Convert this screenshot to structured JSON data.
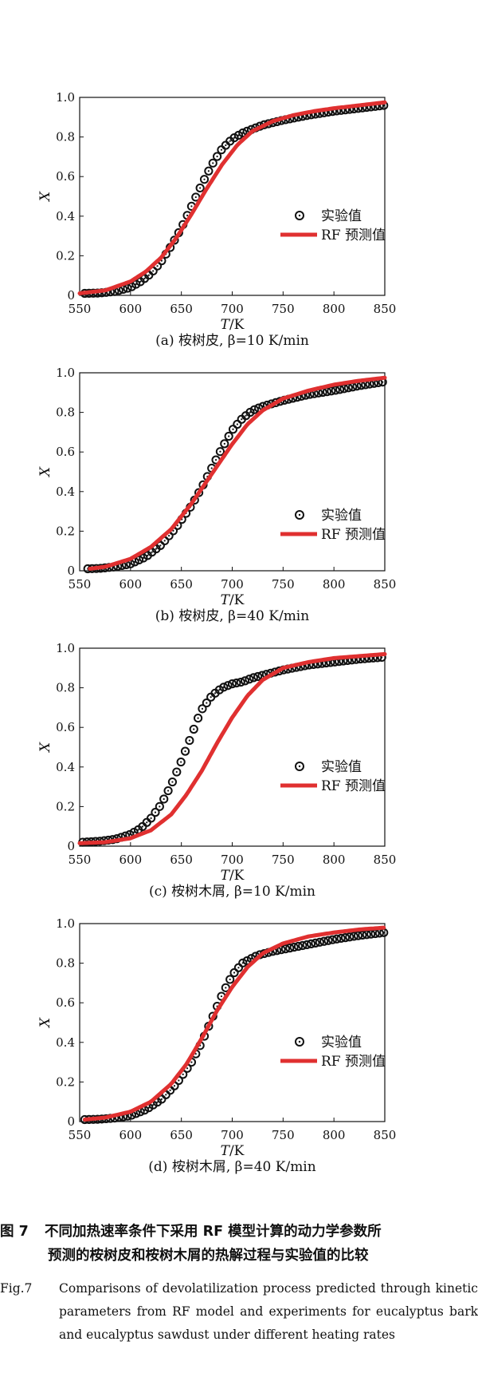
{
  "chart_data": [
    {
      "type": "line",
      "panel_caption": "(a) 桉树皮, β=10 K/min",
      "xlabel": "T/K",
      "ylabel": "X",
      "xlim": [
        550,
        850
      ],
      "ylim": [
        0,
        1.0
      ],
      "xticks": [
        "550",
        "600",
        "650",
        "700",
        "750",
        "800",
        "850"
      ],
      "yticks": [
        "0",
        "0.2",
        "0.4",
        "0.6",
        "0.8",
        "1.0"
      ],
      "legend_position": "right",
      "series": [
        {
          "name": "实验值",
          "marker": "circle-dot",
          "x": [
            555,
            570,
            585,
            600,
            610,
            620,
            630,
            640,
            650,
            660,
            670,
            680,
            690,
            700,
            710,
            720,
            730,
            750,
            775,
            800,
            825,
            850
          ],
          "y": [
            0.01,
            0.012,
            0.02,
            0.04,
            0.07,
            0.11,
            0.17,
            0.25,
            0.34,
            0.45,
            0.56,
            0.66,
            0.74,
            0.79,
            0.82,
            0.84,
            0.86,
            0.885,
            0.91,
            0.93,
            0.945,
            0.96
          ]
        },
        {
          "name": "RF 预测值",
          "color": "#e03030",
          "x": [
            550,
            575,
            600,
            615,
            630,
            645,
            660,
            675,
            690,
            705,
            720,
            740,
            760,
            780,
            800,
            825,
            850
          ],
          "y": [
            0.01,
            0.025,
            0.07,
            0.12,
            0.19,
            0.29,
            0.41,
            0.54,
            0.66,
            0.76,
            0.83,
            0.88,
            0.91,
            0.93,
            0.945,
            0.96,
            0.975
          ]
        }
      ]
    },
    {
      "type": "line",
      "panel_caption": "(b) 桉树皮, β=40 K/min",
      "xlabel": "T/K",
      "ylabel": "X",
      "xlim": [
        550,
        850
      ],
      "ylim": [
        0,
        1.0
      ],
      "xticks": [
        "550",
        "600",
        "650",
        "700",
        "750",
        "800",
        "850"
      ],
      "yticks": [
        "0",
        "0.2",
        "0.4",
        "0.6",
        "0.8",
        "1.0"
      ],
      "legend_position": "right",
      "series": [
        {
          "name": "实验值",
          "marker": "circle-dot",
          "x": [
            558,
            570,
            585,
            600,
            615,
            630,
            645,
            660,
            670,
            680,
            690,
            700,
            710,
            720,
            730,
            750,
            775,
            800,
            825,
            850
          ],
          "y": [
            0.01,
            0.012,
            0.02,
            0.035,
            0.07,
            0.13,
            0.22,
            0.33,
            0.42,
            0.52,
            0.62,
            0.71,
            0.77,
            0.81,
            0.83,
            0.86,
            0.89,
            0.91,
            0.935,
            0.955
          ]
        },
        {
          "name": "RF 预测值",
          "color": "#e03030",
          "x": [
            560,
            575,
            600,
            620,
            640,
            660,
            680,
            700,
            715,
            730,
            750,
            775,
            800,
            825,
            850
          ],
          "y": [
            0.01,
            0.02,
            0.06,
            0.12,
            0.21,
            0.34,
            0.49,
            0.64,
            0.74,
            0.81,
            0.87,
            0.91,
            0.94,
            0.96,
            0.975
          ]
        }
      ]
    },
    {
      "type": "line",
      "panel_caption": "(c) 桉树木屑, β=10 K/min",
      "xlabel": "T/K",
      "ylabel": "X",
      "xlim": [
        550,
        850
      ],
      "ylim": [
        0,
        1.0
      ],
      "xticks": [
        "550",
        "600",
        "650",
        "700",
        "750",
        "800",
        "850"
      ],
      "yticks": [
        "0",
        "0.2",
        "0.4",
        "0.6",
        "0.8",
        "1.0"
      ],
      "legend_position": "right",
      "series": [
        {
          "name": "实验值",
          "marker": "circle-dot",
          "x": [
            553,
            570,
            585,
            600,
            610,
            620,
            630,
            640,
            650,
            660,
            665,
            670,
            680,
            690,
            700,
            710,
            720,
            735,
            750,
            775,
            800,
            825,
            850
          ],
          "y": [
            0.02,
            0.025,
            0.035,
            0.06,
            0.09,
            0.14,
            0.21,
            0.31,
            0.43,
            0.56,
            0.63,
            0.69,
            0.76,
            0.8,
            0.82,
            0.83,
            0.85,
            0.87,
            0.89,
            0.915,
            0.93,
            0.945,
            0.955
          ]
        },
        {
          "name": "RF 预测值",
          "color": "#e03030",
          "x": [
            550,
            575,
            600,
            620,
            640,
            655,
            670,
            685,
            700,
            715,
            730,
            750,
            775,
            800,
            825,
            850
          ],
          "y": [
            0.015,
            0.02,
            0.04,
            0.08,
            0.16,
            0.26,
            0.38,
            0.52,
            0.65,
            0.76,
            0.84,
            0.9,
            0.93,
            0.95,
            0.96,
            0.97
          ]
        }
      ]
    },
    {
      "type": "line",
      "panel_caption": "(d) 桉树木屑, β=40 K/min",
      "xlabel": "T/K",
      "ylabel": "X",
      "xlim": [
        550,
        850
      ],
      "ylim": [
        0,
        1.0
      ],
      "xticks": [
        "550",
        "600",
        "650",
        "700",
        "750",
        "800",
        "850"
      ],
      "yticks": [
        "0",
        "0.2",
        "0.4",
        "0.6",
        "0.8",
        "1.0"
      ],
      "legend_position": "right",
      "series": [
        {
          "name": "实验值",
          "marker": "circle-dot",
          "x": [
            555,
            570,
            585,
            600,
            615,
            630,
            645,
            660,
            670,
            680,
            690,
            700,
            710,
            725,
            740,
            760,
            780,
            800,
            825,
            850
          ],
          "y": [
            0.01,
            0.012,
            0.018,
            0.03,
            0.06,
            0.11,
            0.19,
            0.3,
            0.4,
            0.52,
            0.64,
            0.74,
            0.8,
            0.84,
            0.86,
            0.88,
            0.9,
            0.92,
            0.94,
            0.955
          ]
        },
        {
          "name": "RF 预测值",
          "color": "#e03030",
          "x": [
            555,
            575,
            600,
            620,
            640,
            655,
            670,
            685,
            700,
            715,
            730,
            750,
            775,
            800,
            825,
            850
          ],
          "y": [
            0.01,
            0.02,
            0.05,
            0.1,
            0.19,
            0.29,
            0.42,
            0.56,
            0.68,
            0.78,
            0.85,
            0.9,
            0.935,
            0.955,
            0.97,
            0.98
          ]
        }
      ]
    }
  ],
  "caption": {
    "cn_label": "图 7",
    "cn_line1": "不同加热速率条件下采用 RF 模型计算的动力学参数所",
    "cn_line2": "预测的桉树皮和桉树木屑的热解过程与实验值的比较",
    "en_label": "Fig.7",
    "en_text": "Comparisons of devolatilization process predicted through kinetic parameters from RF model and experiments for eucalyptus bark and eucalyptus sawdust under different heating rates"
  }
}
